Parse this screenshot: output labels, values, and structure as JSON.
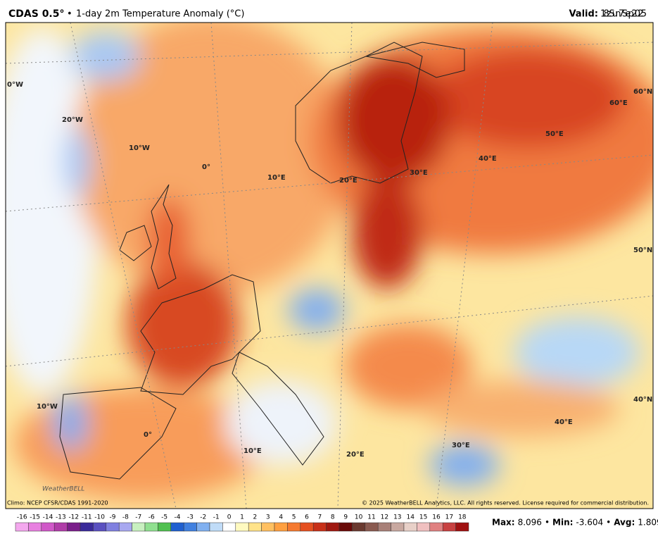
{
  "header": {
    "model": "CDAS 0.5°",
    "separator": "•",
    "product": "1-day 2m Temperature Anomaly (°C)",
    "valid_label": "Valid:",
    "valid_time": "18z Sun 7 Sep 2025"
  },
  "map": {
    "grid_labels": [
      "0°W",
      "20°W",
      "10°W",
      "0°",
      "10°E",
      "20°E",
      "30°E",
      "40°E",
      "50°E",
      "60°E",
      "60°N",
      "50°N",
      "40°N",
      "10°W",
      "0°",
      "10°E",
      "20°E",
      "30°E",
      "40°E"
    ],
    "brand": "WeatherBELL"
  },
  "footer": {
    "climo": "Climo: NCEP CFSR/CDAS 1991-2020",
    "copyright": "© 2025 WeatherBELL Analytics, LLC. All rights reserved. License required for commercial distribution."
  },
  "colorbar": {
    "ticks": [
      -16,
      -15,
      -14,
      -13,
      -12,
      -11,
      -10,
      -9,
      -8,
      -7,
      -6,
      -5,
      -4,
      -3,
      -2,
      -1,
      0,
      1,
      2,
      3,
      4,
      5,
      6,
      7,
      8,
      9,
      10,
      11,
      12,
      13,
      14,
      15,
      16,
      17,
      18
    ],
    "colors": [
      "#f4a8ee",
      "#e880e0",
      "#d058c8",
      "#b03ca8",
      "#7a1e8a",
      "#3a2a9a",
      "#5a50c0",
      "#8080e0",
      "#a8a8f0",
      "#c8f0c0",
      "#90e090",
      "#50c050",
      "#2060d0",
      "#4080e0",
      "#80b0f0",
      "#c0dcf8",
      "#ffffff",
      "#fffac0",
      "#ffe38a",
      "#ffc060",
      "#ffa040",
      "#f57a30",
      "#e55020",
      "#c83018",
      "#a01810",
      "#6a0a08",
      "#6b3a30",
      "#8a5a50",
      "#a88078",
      "#c8a8a0",
      "#e8d0c8",
      "#f0c0c0",
      "#e08080",
      "#c84040",
      "#a01010"
    ]
  },
  "stats": {
    "max_label": "Max:",
    "max": 8.096,
    "min_label": "Min:",
    "min": -3.604,
    "avg_label": "Avg:",
    "avg": 1.809,
    "separator": "•"
  }
}
